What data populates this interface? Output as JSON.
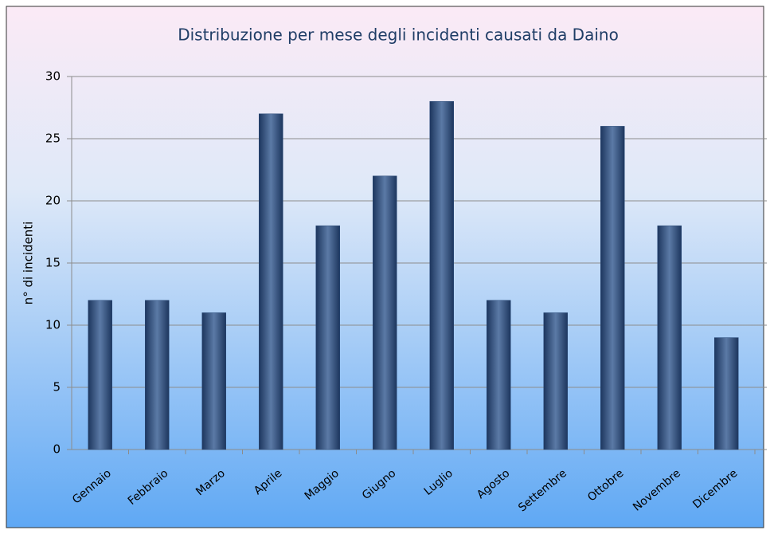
{
  "chart_data": {
    "type": "bar",
    "title": "Distribuzione per mese degli incidenti causati da Daino",
    "y_label": "n° di incidenti",
    "categories": [
      "Gennaio",
      "Febbraio",
      "Marzo",
      "Aprile",
      "Maggio",
      "Giugno",
      "Luglio",
      "Agosto",
      "Settembre",
      "Ottobre",
      "Novembre",
      "Dicembre"
    ],
    "values": [
      12,
      12,
      11,
      27,
      18,
      22,
      28,
      12,
      11,
      26,
      18,
      9
    ],
    "color": "#2a4a78",
    "ylim": [
      0,
      30
    ],
    "yticks": [
      0,
      5,
      10,
      15,
      20,
      25,
      30
    ],
    "grid": true
  }
}
